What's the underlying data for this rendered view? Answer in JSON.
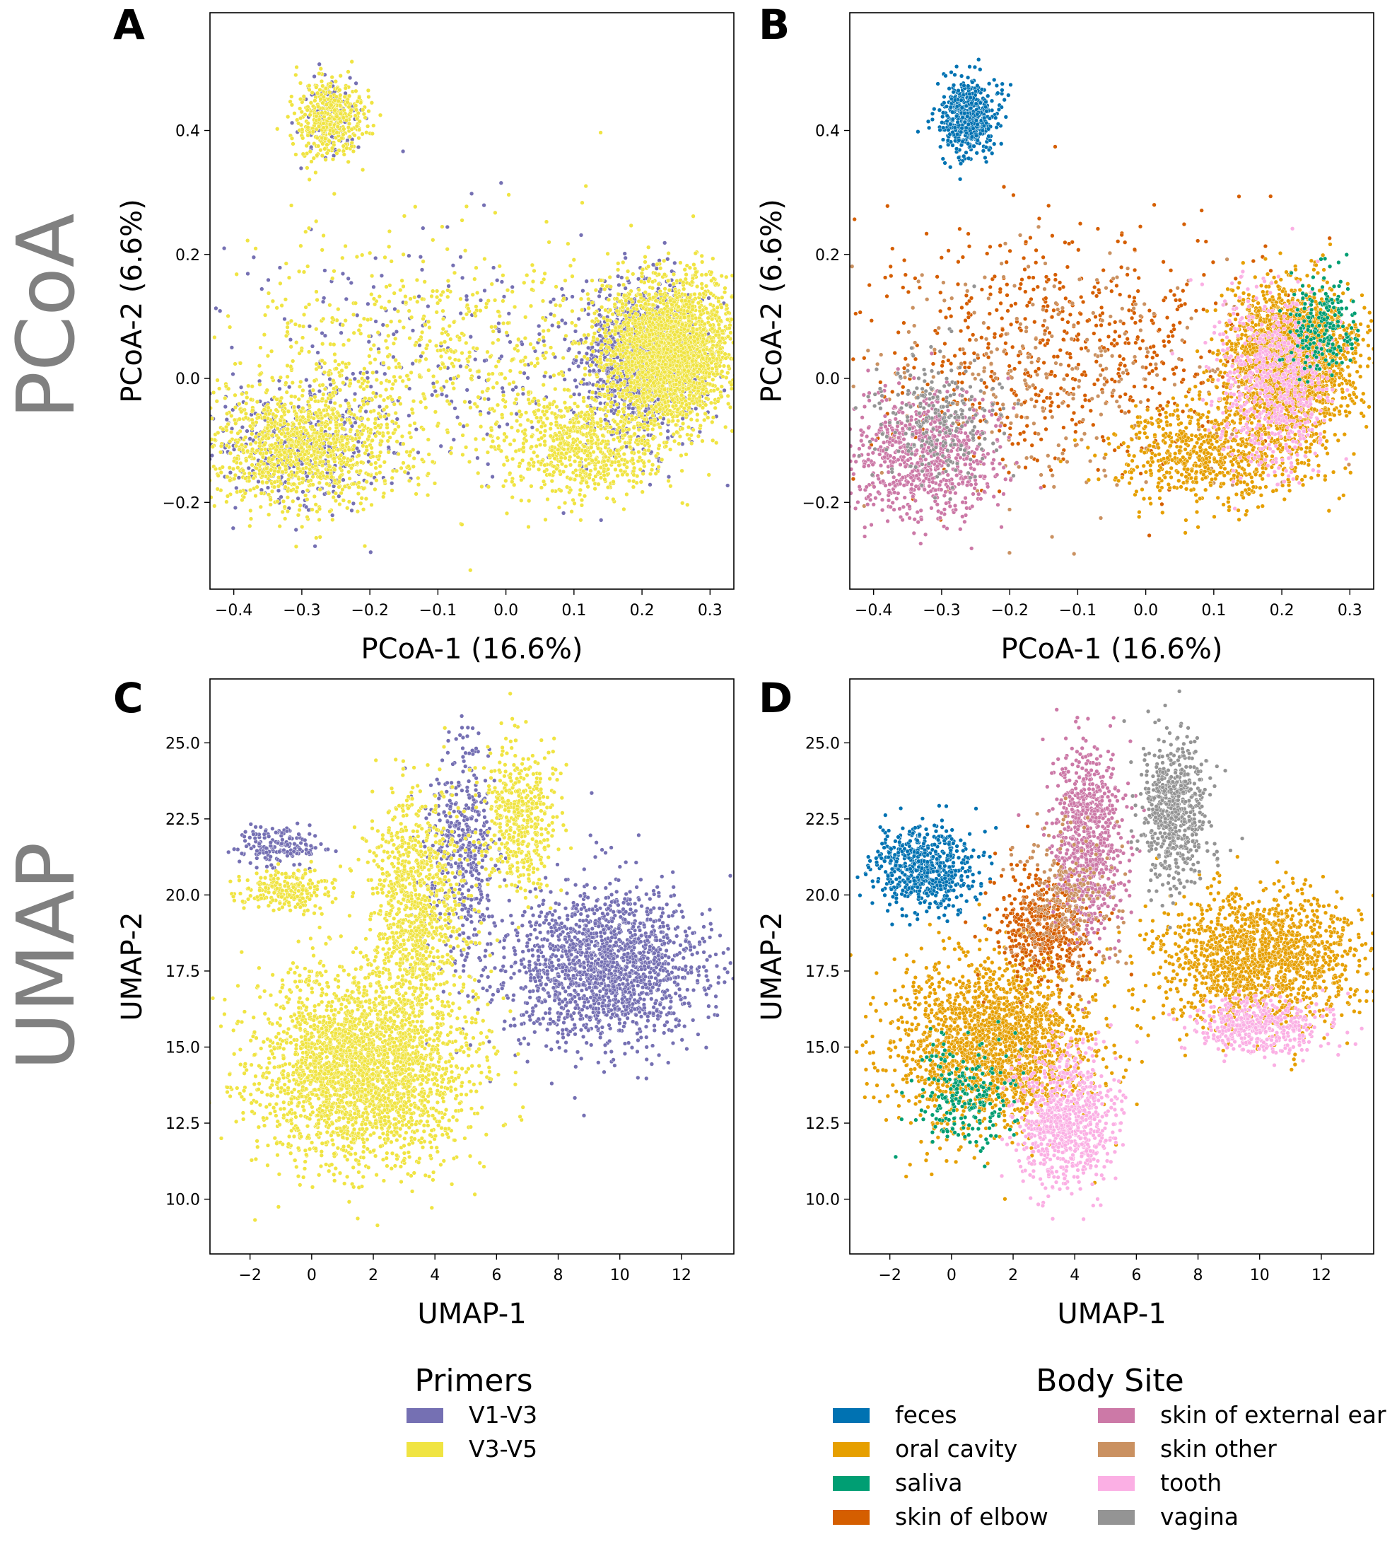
{
  "row_labels": [
    "PCoA",
    "UMAP"
  ],
  "colors": {
    "V1-V3": "#7570b3",
    "V3-V5": "#f0e442",
    "feces": "#0072b2",
    "oral cavity": "#e69f00",
    "saliva": "#009e73",
    "skin of elbow": "#d55e00",
    "skin of external ear": "#cc79a7",
    "skin other": "#ca9161",
    "tooth": "#fbafe4",
    "vagina": "#949494"
  },
  "chart_data": [
    {
      "panel": "A",
      "type": "scatter",
      "xlabel": "PCoA-1 (16.6%)",
      "ylabel": "PCoA-2 (6.6%)",
      "xlim": [
        -0.435,
        0.335
      ],
      "ylim": [
        -0.34,
        0.59
      ],
      "xticks": [
        -0.4,
        -0.3,
        -0.2,
        -0.1,
        0.0,
        0.1,
        0.2,
        0.3
      ],
      "xtick_labels": [
        "−0.4",
        "−0.3",
        "−0.2",
        "−0.1",
        "0.0",
        "0.1",
        "0.2",
        "0.3"
      ],
      "yticks": [
        -0.2,
        0.0,
        0.2,
        0.4
      ],
      "ytick_labels": [
        "−0.2",
        "0.0",
        "0.2",
        "0.4"
      ],
      "color_by": "primers",
      "series": [
        {
          "name": "V1-V3",
          "clusters": [
            {
              "cx": 0.2,
              "cy": 0.03,
              "sx": 0.045,
              "sy": 0.06,
              "n": 1200
            },
            {
              "cx": -0.3,
              "cy": -0.11,
              "sx": 0.07,
              "sy": 0.05,
              "n": 380
            },
            {
              "cx": -0.26,
              "cy": 0.42,
              "sx": 0.022,
              "sy": 0.03,
              "n": 110
            },
            {
              "cx": -0.1,
              "cy": 0.04,
              "sx": 0.17,
              "sy": 0.1,
              "n": 260
            }
          ]
        },
        {
          "name": "V3-V5",
          "clusters": [
            {
              "cx": 0.24,
              "cy": 0.04,
              "sx": 0.045,
              "sy": 0.055,
              "n": 2600
            },
            {
              "cx": 0.12,
              "cy": -0.11,
              "sx": 0.06,
              "sy": 0.04,
              "n": 650
            },
            {
              "cx": -0.3,
              "cy": -0.11,
              "sx": 0.07,
              "sy": 0.05,
              "n": 1100
            },
            {
              "cx": -0.26,
              "cy": 0.42,
              "sx": 0.025,
              "sy": 0.03,
              "n": 430
            },
            {
              "cx": -0.1,
              "cy": 0.03,
              "sx": 0.17,
              "sy": 0.1,
              "n": 750
            }
          ]
        }
      ]
    },
    {
      "panel": "B",
      "type": "scatter",
      "xlabel": "PCoA-1 (16.6%)",
      "ylabel": "PCoA-2 (6.6%)",
      "xlim": [
        -0.435,
        0.335
      ],
      "ylim": [
        -0.34,
        0.59
      ],
      "xticks": [
        -0.4,
        -0.3,
        -0.2,
        -0.1,
        0.0,
        0.1,
        0.2,
        0.3
      ],
      "xtick_labels": [
        "−0.4",
        "−0.3",
        "−0.2",
        "−0.1",
        "0.0",
        "0.1",
        "0.2",
        "0.3"
      ],
      "yticks": [
        -0.2,
        0.0,
        0.2,
        0.4
      ],
      "ytick_labels": [
        "−0.2",
        "0.0",
        "0.2",
        "0.4"
      ],
      "color_by": "body_site",
      "series": [
        {
          "name": "skin of elbow",
          "clusters": [
            {
              "cx": -0.12,
              "cy": 0.05,
              "sx": 0.15,
              "sy": 0.1,
              "n": 650
            }
          ]
        },
        {
          "name": "skin other",
          "clusters": [
            {
              "cx": -0.15,
              "cy": 0.0,
              "sx": 0.14,
              "sy": 0.1,
              "n": 300
            }
          ]
        },
        {
          "name": "skin of external ear",
          "clusters": [
            {
              "cx": -0.33,
              "cy": -0.13,
              "sx": 0.06,
              "sy": 0.05,
              "n": 750
            }
          ]
        },
        {
          "name": "vagina",
          "clusters": [
            {
              "cx": -0.31,
              "cy": -0.06,
              "sx": 0.045,
              "sy": 0.05,
              "n": 260
            }
          ]
        },
        {
          "name": "oral cavity",
          "clusters": [
            {
              "cx": 0.21,
              "cy": 0.03,
              "sx": 0.045,
              "sy": 0.06,
              "n": 2200
            },
            {
              "cx": 0.1,
              "cy": -0.12,
              "sx": 0.07,
              "sy": 0.04,
              "n": 700
            }
          ]
        },
        {
          "name": "tooth",
          "clusters": [
            {
              "cx": 0.19,
              "cy": -0.01,
              "sx": 0.04,
              "sy": 0.07,
              "n": 700
            }
          ]
        },
        {
          "name": "saliva",
          "clusters": [
            {
              "cx": 0.26,
              "cy": 0.08,
              "sx": 0.025,
              "sy": 0.04,
              "n": 200
            }
          ]
        },
        {
          "name": "feces",
          "clusters": [
            {
              "cx": -0.26,
              "cy": 0.42,
              "sx": 0.022,
              "sy": 0.03,
              "n": 520
            }
          ]
        }
      ]
    },
    {
      "panel": "C",
      "type": "scatter",
      "xlabel": "UMAP-1",
      "ylabel": "UMAP-2",
      "xlim": [
        -3.3,
        13.7
      ],
      "ylim": [
        8.2,
        27.1
      ],
      "xticks": [
        -2,
        0,
        2,
        4,
        6,
        8,
        10,
        12
      ],
      "xtick_labels": [
        "−2",
        "0",
        "2",
        "4",
        "6",
        "8",
        "10",
        "12"
      ],
      "yticks": [
        10.0,
        12.5,
        15.0,
        17.5,
        20.0,
        22.5,
        25.0
      ],
      "ytick_labels": [
        "10.0",
        "12.5",
        "15.0",
        "17.5",
        "20.0",
        "22.5",
        "25.0"
      ],
      "color_by": "primers",
      "series": [
        {
          "name": "V1-V3",
          "clusters": [
            {
              "cx": 9.5,
              "cy": 17.6,
              "sx": 1.7,
              "sy": 1.3,
              "n": 1700
            },
            {
              "cx": -1.0,
              "cy": 21.6,
              "sx": 0.7,
              "sy": 0.35,
              "n": 160
            },
            {
              "cx": 4.8,
              "cy": 21.5,
              "sx": 0.55,
              "sy": 1.7,
              "n": 450
            }
          ]
        },
        {
          "name": "V3-V5",
          "clusters": [
            {
              "cx": 1.6,
              "cy": 14.4,
              "sx": 1.7,
              "sy": 1.6,
              "n": 2800
            },
            {
              "cx": 3.4,
              "cy": 19.8,
              "sx": 0.75,
              "sy": 1.8,
              "n": 900
            },
            {
              "cx": -0.8,
              "cy": 20.2,
              "sx": 0.8,
              "sy": 0.35,
              "n": 220
            },
            {
              "cx": 6.7,
              "cy": 22.6,
              "sx": 0.6,
              "sy": 1.2,
              "n": 480
            }
          ]
        }
      ]
    },
    {
      "panel": "D",
      "type": "scatter",
      "xlabel": "UMAP-1",
      "ylabel": "UMAP-2",
      "xlim": [
        -3.3,
        13.7
      ],
      "ylim": [
        8.2,
        27.1
      ],
      "xticks": [
        -2,
        0,
        2,
        4,
        6,
        8,
        10,
        12
      ],
      "xtick_labels": [
        "−2",
        "0",
        "2",
        "4",
        "6",
        "8",
        "10",
        "12"
      ],
      "yticks": [
        10.0,
        12.5,
        15.0,
        17.5,
        20.0,
        22.5,
        25.0
      ],
      "ytick_labels": [
        "10.0",
        "12.5",
        "15.0",
        "17.5",
        "20.0",
        "22.5",
        "25.0"
      ],
      "color_by": "body_site",
      "series": [
        {
          "name": "feces",
          "clusters": [
            {
              "cx": -0.9,
              "cy": 20.9,
              "sx": 0.8,
              "sy": 0.7,
              "n": 620
            }
          ]
        },
        {
          "name": "oral cavity",
          "clusters": [
            {
              "cx": 10.0,
              "cy": 17.9,
              "sx": 1.6,
              "sy": 1.1,
              "n": 1500
            },
            {
              "cx": 1.4,
              "cy": 15.1,
              "sx": 1.6,
              "sy": 1.4,
              "n": 2000
            }
          ]
        },
        {
          "name": "saliva",
          "clusters": [
            {
              "cx": 0.5,
              "cy": 13.5,
              "sx": 0.8,
              "sy": 0.9,
              "n": 220
            }
          ]
        },
        {
          "name": "skin of elbow",
          "clusters": [
            {
              "cx": 3.0,
              "cy": 18.9,
              "sx": 0.8,
              "sy": 0.9,
              "n": 520
            }
          ]
        },
        {
          "name": "skin of external ear",
          "clusters": [
            {
              "cx": 4.4,
              "cy": 21.8,
              "sx": 0.6,
              "sy": 1.5,
              "n": 780
            }
          ]
        },
        {
          "name": "skin other",
          "clusters": [
            {
              "cx": 3.7,
              "cy": 19.8,
              "sx": 0.8,
              "sy": 1.2,
              "n": 200
            }
          ]
        },
        {
          "name": "tooth",
          "clusters": [
            {
              "cx": 3.8,
              "cy": 12.6,
              "sx": 0.8,
              "sy": 1.1,
              "n": 800
            },
            {
              "cx": 10.0,
              "cy": 15.7,
              "sx": 1.1,
              "sy": 0.45,
              "n": 450
            }
          ]
        },
        {
          "name": "vagina",
          "clusters": [
            {
              "cx": 7.2,
              "cy": 22.8,
              "sx": 0.55,
              "sy": 1.2,
              "n": 620
            }
          ]
        }
      ]
    }
  ],
  "legends": {
    "primers": {
      "title": "Primers",
      "items": [
        "V1-V3",
        "V3-V5"
      ]
    },
    "body_site": {
      "title": "Body Site",
      "items": [
        "feces",
        "oral cavity",
        "saliva",
        "skin of elbow",
        "skin of external ear",
        "skin other",
        "tooth",
        "vagina"
      ]
    }
  }
}
